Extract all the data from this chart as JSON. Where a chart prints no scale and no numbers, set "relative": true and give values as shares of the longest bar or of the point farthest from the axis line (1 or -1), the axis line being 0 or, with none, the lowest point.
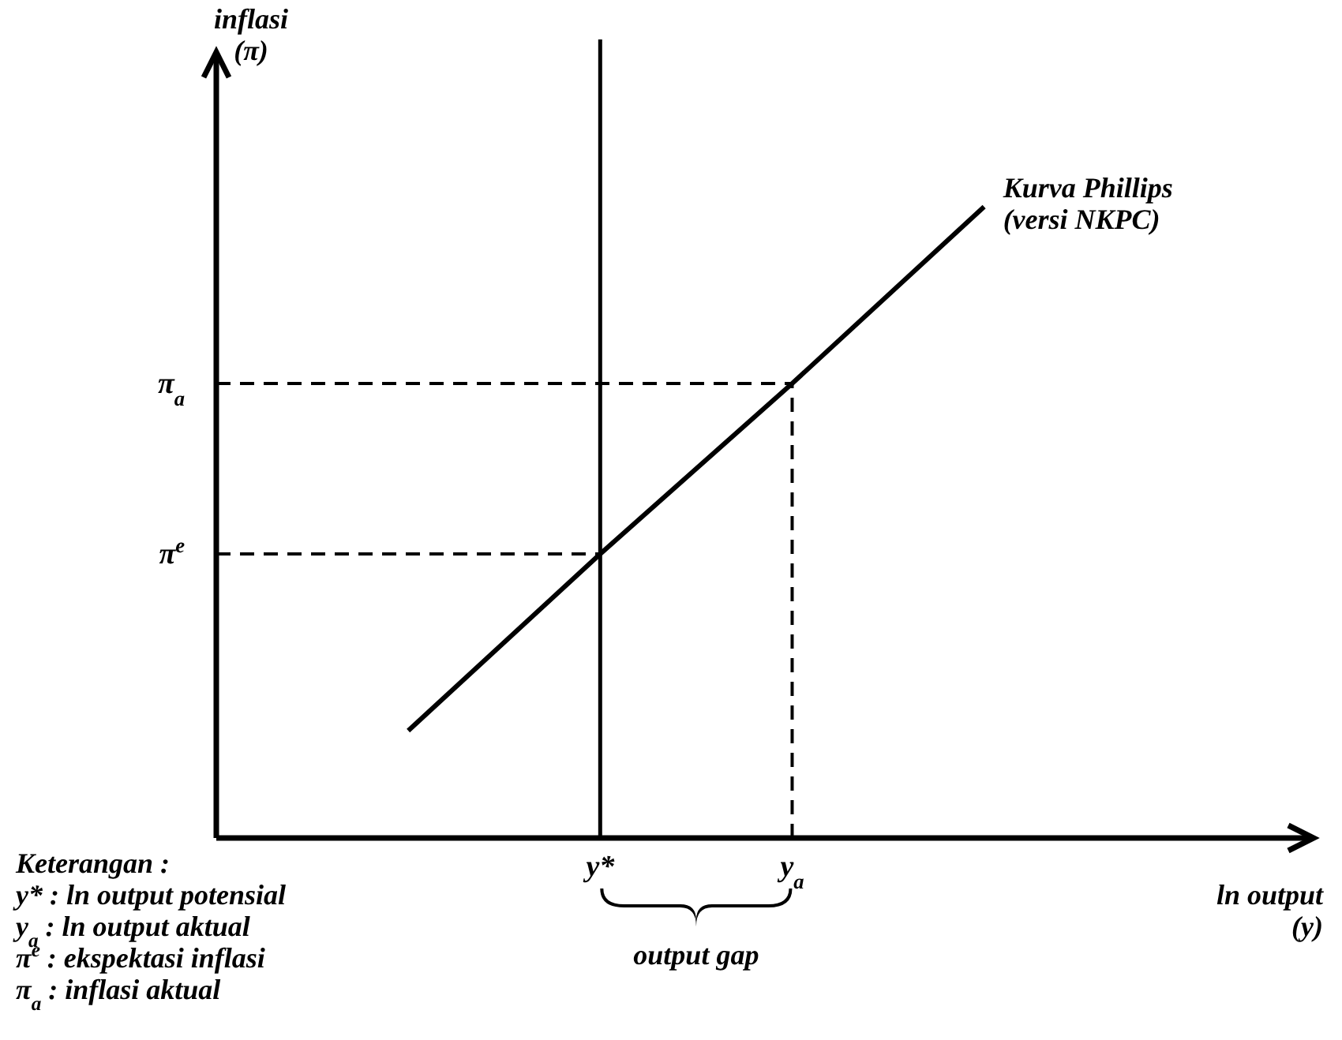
{
  "chart_data": {
    "type": "line",
    "relative": true,
    "xlabel": "ln output\n(y)",
    "categories": [
      null,
      "y*",
      "y$_{a}$",
      null
    ],
    "series": [
      {
        "name": "Kurva Phillips\n(versi NKPC)",
        "color": "#000000",
        "values": [
          0.17,
          0.45,
          0.72,
          1
        ]
      }
    ],
    "ref_lines": [
      {
        "axis": "x",
        "value": "y*",
        "line_style": "solid",
        "color": "#000000"
      },
      {
        "axis": "x",
        "value": "y$_{a}$",
        "line_style": "dashed",
        "color": "#000000"
      },
      {
        "axis": "y",
        "value": 0.72,
        "label": "π$_{a}$",
        "line_style": "dashed",
        "color": "#000000"
      },
      {
        "axis": "y",
        "value": 0.45,
        "label": "π$^{e}$",
        "line_style": "dashed",
        "color": "#000000"
      }
    ],
    "annotations": [
      "output gap",
      "Keterangan :",
      "y* : ln output potensial",
      "y$_{a}$ : ln output aktual",
      "π$^{e}$ : ekspektasi inflasi",
      "π$_{a}$ : inflasi aktual",
      "inflasi\n(π)"
    ],
    "legend": false,
    "marker": "none",
    "line_style": "solid"
  }
}
